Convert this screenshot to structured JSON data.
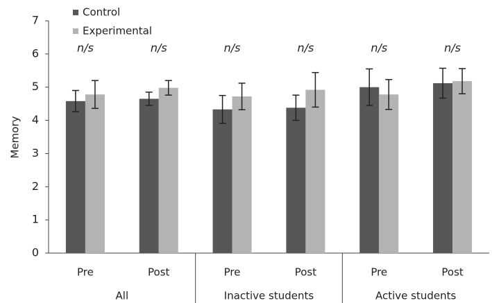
{
  "chart_data": {
    "type": "bar",
    "y_label": "Memory",
    "categories": [
      "Pre",
      "Post",
      "Pre",
      "Post",
      "Pre",
      "Post"
    ],
    "groups": [
      "All",
      "Inactive students",
      "Active students"
    ],
    "annotations": [
      "n/s",
      "n/s",
      "n/s",
      "n/s",
      "n/s",
      "n/s"
    ],
    "series": [
      {
        "name": "Control",
        "color": "#575757",
        "values": [
          4.58,
          4.65,
          4.33,
          4.38,
          5.0,
          5.12
        ],
        "errors": [
          0.32,
          0.2,
          0.42,
          0.38,
          0.55,
          0.45
        ]
      },
      {
        "name": "Experimental",
        "color": "#b3b3b3",
        "values": [
          4.78,
          4.98,
          4.72,
          4.92,
          4.78,
          5.18
        ],
        "errors": [
          0.42,
          0.22,
          0.4,
          0.52,
          0.45,
          0.38
        ]
      }
    ],
    "ylim": [
      0,
      7
    ],
    "yticks": [
      0,
      1,
      2,
      3,
      4,
      5,
      6,
      7
    ],
    "grid": false,
    "legend": "top-left"
  }
}
